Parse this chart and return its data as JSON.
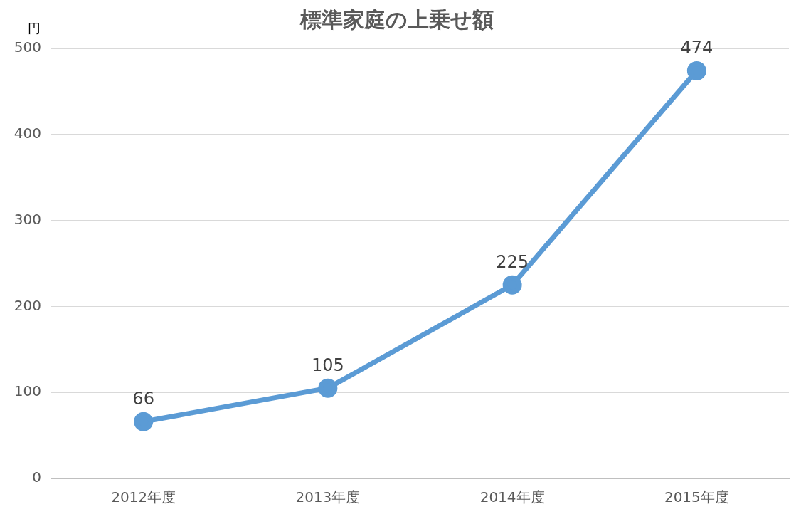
{
  "chart_data": {
    "type": "line",
    "title": "標準家庭の上乗せ額",
    "ylabel": "円",
    "categories": [
      "2012年度",
      "2013年度",
      "2014年度",
      "2015年度"
    ],
    "series": [
      {
        "color": "#5b9bd5",
        "values": [
          66,
          105,
          225,
          474
        ]
      }
    ],
    "ylim": [
      0,
      500
    ],
    "yticks": [
      0,
      100,
      200,
      300,
      400,
      500
    ],
    "grid": "y",
    "marker": "circle",
    "line_style": "solid",
    "data_labels": true,
    "legend": false
  }
}
